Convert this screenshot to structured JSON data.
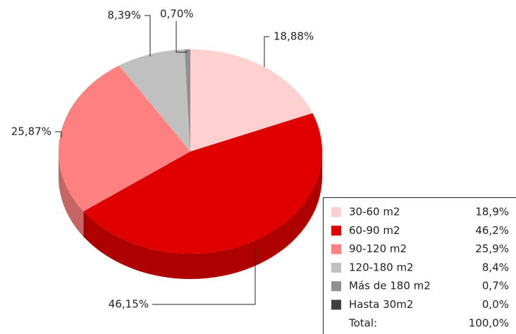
{
  "chart_data": {
    "type": "pie",
    "categories": [
      "30-60 m2",
      "60-90 m2",
      "90-120 m2",
      "120-180 m2",
      "Más de 180 m2",
      "Hasta 30m2"
    ],
    "values": [
      18.88,
      46.15,
      25.87,
      8.39,
      0.7,
      0
    ],
    "value_labels": [
      "18,88%",
      "46,15%",
      "25,87%",
      "8,39%",
      "0,70%",
      null
    ],
    "colors": [
      "#ffd0d0",
      "#e00000",
      "#ff8080",
      "#c0c0c0",
      "#909090",
      "#404040"
    ],
    "legend_value_labels": [
      "18,9%",
      "46,2%",
      "25,9%",
      "8,4%",
      "0,7%",
      "0,0%"
    ],
    "total_label": "Total:",
    "total_value_label": "100,0%"
  }
}
